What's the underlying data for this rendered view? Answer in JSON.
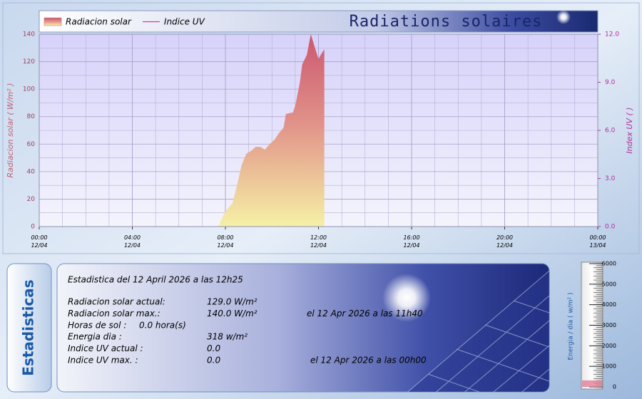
{
  "title": "Radiations solaires",
  "chart_data": [
    {
      "type": "area",
      "x": [
        7.7,
        7.9,
        8.1,
        8.3,
        8.5,
        8.7,
        8.9,
        9.1,
        9.3,
        9.5,
        9.7,
        9.9,
        10.1,
        10.3,
        10.5,
        10.6,
        10.9,
        11.0,
        11.2,
        11.3,
        11.5,
        11.67,
        11.85,
        12.0,
        12.1,
        12.25
      ],
      "series": [
        {
          "name": "Radiacion solar",
          "color": "#d06070",
          "values": [
            0,
            8,
            13,
            17,
            30,
            45,
            53,
            55,
            58,
            58,
            56,
            60,
            63,
            68,
            72,
            82,
            83,
            88,
            105,
            118,
            125,
            140,
            130,
            122,
            125,
            129
          ]
        },
        {
          "name": "Indice UV",
          "color": "#d040a0",
          "axis": "y2",
          "values": [
            0,
            0,
            0,
            0,
            0,
            0,
            0,
            0,
            0,
            0,
            0,
            0,
            0,
            0,
            0,
            0,
            0,
            0,
            0,
            0,
            0,
            0,
            0,
            0,
            0,
            0
          ]
        }
      ],
      "ylabel": "Radiacion solar ( W/m² )",
      "y2label": "Index UV ( )",
      "xlim": [
        0,
        24
      ],
      "xticks": [
        {
          "value": 0,
          "label": "00:00\n12/04"
        },
        {
          "value": 4,
          "label": "04:00\n12/04"
        },
        {
          "value": 8,
          "label": "08:00\n12/04"
        },
        {
          "value": 12,
          "label": "12:00\n12/04"
        },
        {
          "value": 16,
          "label": "16:00\n12/04"
        },
        {
          "value": 20,
          "label": "20:00\n12/04"
        },
        {
          "value": 24,
          "label": "00:00\n13/04"
        }
      ],
      "ylim": [
        0,
        140
      ],
      "yticks": [
        0,
        20,
        40,
        60,
        80,
        100,
        120,
        140
      ],
      "y2lim": [
        0,
        12
      ],
      "y2ticks": [
        {
          "value": 0,
          "label": "0.0"
        },
        {
          "value": 3,
          "label": "3.0"
        },
        {
          "value": 6,
          "label": "6.0"
        },
        {
          "value": 9,
          "label": "9.0"
        },
        {
          "value": 12,
          "label": "12.0"
        }
      ],
      "grid": true,
      "legend": "top-left"
    },
    {
      "type": "gauge",
      "ylabel": "Energia / dia ( w/m² )",
      "values": [
        318
      ],
      "color": "#e08098",
      "ylim": [
        0,
        6000
      ],
      "yticks": [
        0,
        1000,
        2000,
        3000,
        4000,
        5000,
        6000
      ]
    }
  ],
  "stats": {
    "tab": "Estadisticas",
    "header": "Estadistica del 12 April 2026 a las 12h25",
    "rows": [
      [
        "Radiacion solar actual:",
        "129.0 W/m²"
      ],
      [
        "Radiacion solar max.:",
        "140.0 W/m²",
        "el 12 Apr 2026 a las 11h40"
      ],
      [
        "Horas de sol :",
        "0.0 hora(s)"
      ],
      [
        "Energia dia :",
        "318 w/m²"
      ],
      [
        "Indice UV actual :",
        "0.0"
      ],
      [
        "Indice UV max. :",
        "0.0",
        "el 12 Apr 2026 a las 00h00"
      ]
    ]
  }
}
